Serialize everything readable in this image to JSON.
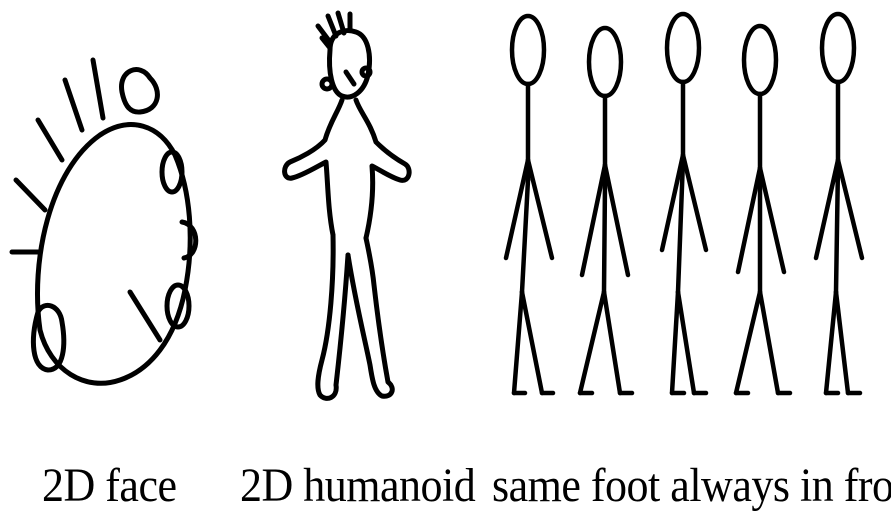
{
  "captions": {
    "face": "2D face",
    "humanoid": "2D humanoid",
    "front": "same foot always in front"
  },
  "figures": {
    "face_icon": "2d-face-drawing",
    "humanoid_icon": "2d-humanoid-drawing",
    "stick_figure_icon": "stick-figure",
    "stick_figure_count": 5
  },
  "colors": {
    "ink": "#000000",
    "background": "#ffffff"
  }
}
